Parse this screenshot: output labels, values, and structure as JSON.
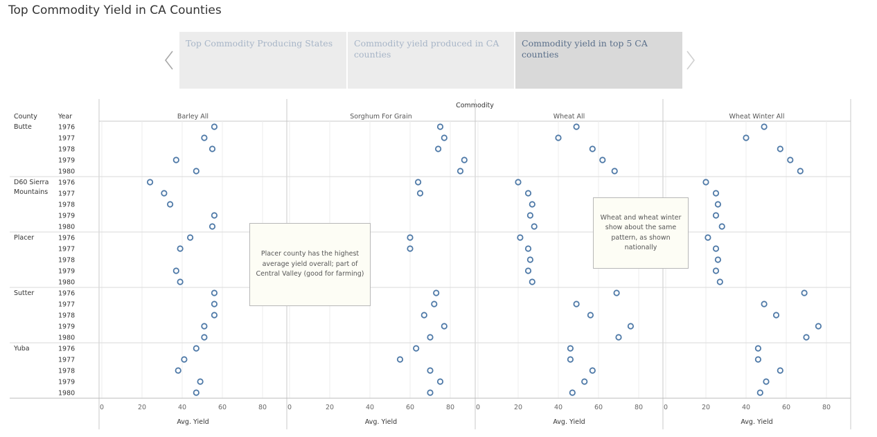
{
  "page_title": "Top Commodity Yield in CA Counties",
  "story_nav": {
    "prev_icon": "chevron-left-icon",
    "next_icon": "chevron-right-icon",
    "tabs": [
      {
        "label": "Top Commodity Producing States",
        "active": false
      },
      {
        "label": "Commodity yield produced in CA counties",
        "active": false
      },
      {
        "label": "Commodity yield in top 5 CA counties",
        "active": true
      }
    ]
  },
  "annotations": [
    {
      "text": "Placer county has the highest average yield overall; part of Central Valley (good for farming)"
    },
    {
      "text": "Wheat and wheat winter show about the same pattern, as shown nationally"
    }
  ],
  "colors": {
    "mark": "#4e79a7",
    "grid": "#d9d9d9",
    "divider": "#c8c8c8"
  },
  "chart_data": {
    "type": "scatter",
    "title": "",
    "column_header": "Commodity",
    "row_headers": [
      "County",
      "Year"
    ],
    "xlabel": "Avg. Yield",
    "xlim": [
      0,
      93
    ],
    "x_ticks": [
      0,
      20,
      40,
      60,
      80
    ],
    "grid": true,
    "counties": [
      {
        "label": [
          "Butte"
        ]
      },
      {
        "label": [
          "D60 Sierra",
          "Mountains"
        ]
      },
      {
        "label": [
          "Placer"
        ]
      },
      {
        "label": [
          "Sutter"
        ]
      },
      {
        "label": [
          "Yuba"
        ]
      }
    ],
    "years": [
      "1976",
      "1977",
      "1978",
      "1979",
      "1980"
    ],
    "panels": [
      {
        "commodity": "Barley All",
        "values": [
          [
            56,
            51,
            55,
            37,
            47
          ],
          [
            24,
            31,
            34,
            56,
            55
          ],
          [
            44,
            39,
            null,
            37,
            39
          ],
          [
            56,
            56,
            56,
            51,
            51
          ],
          [
            47,
            41,
            38,
            49,
            47
          ]
        ]
      },
      {
        "commodity": "Sorghum For Grain",
        "values": [
          [
            75,
            77,
            74,
            87,
            85
          ],
          [
            64,
            65,
            null,
            null,
            null
          ],
          [
            60,
            60,
            null,
            null,
            null
          ],
          [
            73,
            72,
            67,
            77,
            70
          ],
          [
            63,
            55,
            70,
            75,
            70
          ]
        ]
      },
      {
        "commodity": "Wheat All",
        "values": [
          [
            49,
            40,
            57,
            62,
            68
          ],
          [
            20,
            25,
            27,
            26,
            28
          ],
          [
            21,
            25,
            26,
            25,
            27
          ],
          [
            69,
            49,
            56,
            76,
            70
          ],
          [
            46,
            46,
            57,
            53,
            47
          ]
        ]
      },
      {
        "commodity": "Wheat Winter All",
        "values": [
          [
            49,
            40,
            57,
            62,
            67
          ],
          [
            20,
            25,
            26,
            25,
            28
          ],
          [
            21,
            25,
            26,
            25,
            27
          ],
          [
            69,
            49,
            55,
            76,
            70
          ],
          [
            46,
            46,
            57,
            50,
            47
          ]
        ]
      }
    ]
  }
}
